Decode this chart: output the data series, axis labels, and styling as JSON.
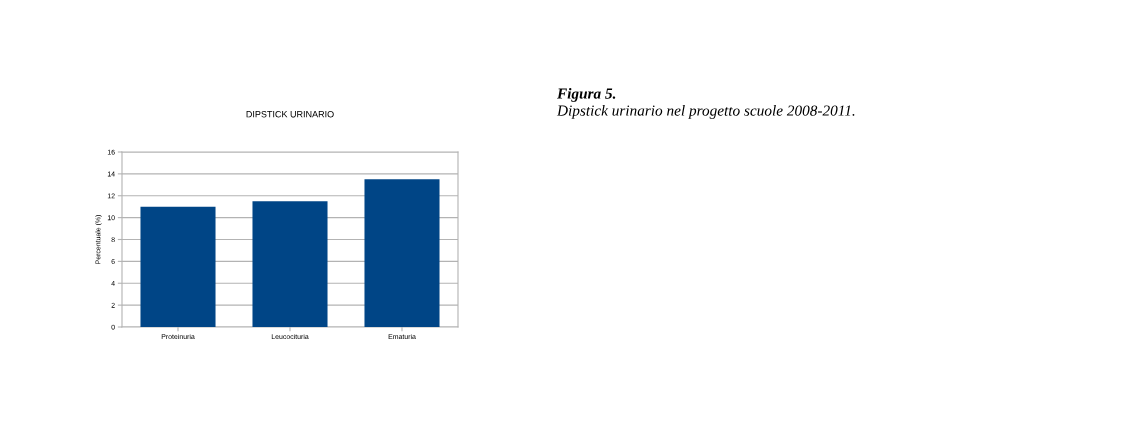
{
  "chart_data": {
    "type": "bar",
    "title": "DIPSTICK URINARIO",
    "ylabel": "Percentuale (%)",
    "categories": [
      "Proteinuria",
      "Leucocituria",
      "Ematuria"
    ],
    "values": [
      11,
      11.5,
      13.5
    ],
    "color": "#004586",
    "ylim": [
      0,
      16
    ],
    "yticks": [
      0,
      2,
      4,
      6,
      8,
      10,
      12,
      14,
      16
    ],
    "grid": "y",
    "legend": false,
    "annotations": [
      "Figura 5.",
      "Dipstick urinario nel progetto scuole 2008-2011."
    ]
  }
}
